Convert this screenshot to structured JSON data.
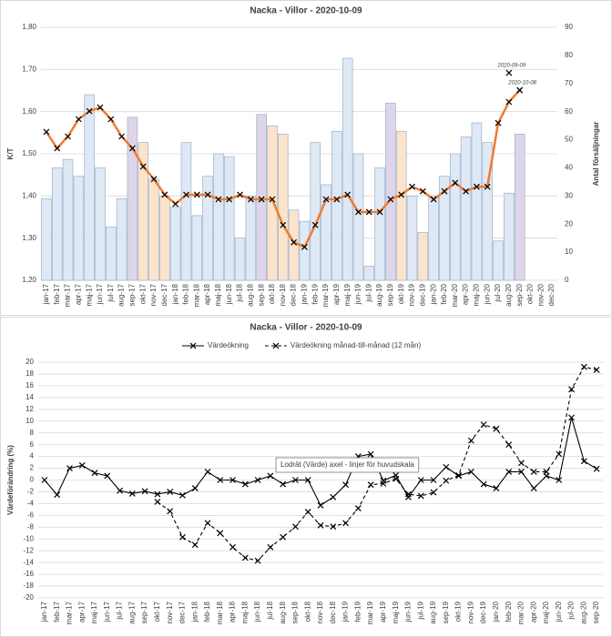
{
  "chart_data": [
    {
      "type": "combo",
      "title": "Nacka - Villor - 2020-10-09",
      "ylabel": "K/T",
      "y2label": "Antal försäljningar",
      "categories": [
        "jan-17",
        "feb-17",
        "mar-17",
        "apr-17",
        "maj-17",
        "jun-17",
        "jul-17",
        "aug-17",
        "sep-17",
        "okt-17",
        "nov-17",
        "dec-17",
        "jan-18",
        "feb-18",
        "mar-18",
        "apr-18",
        "maj-18",
        "jun-18",
        "jul-18",
        "aug-18",
        "sep-18",
        "okt-18",
        "nov-18",
        "dec-18",
        "jan-19",
        "feb-19",
        "mar-19",
        "apr-19",
        "maj-19",
        "jun-19",
        "jul-19",
        "aug-19",
        "sep-19",
        "okt-19",
        "nov-19",
        "dec-19",
        "jan-20",
        "feb-20",
        "mar-20",
        "apr-20",
        "maj-20",
        "jun-20",
        "jul-20",
        "aug-20",
        "sep-20",
        "okt-20",
        "nov-20",
        "dec-20"
      ],
      "ylim": [
        1.2,
        1.8
      ],
      "yticks": [
        {
          "value": 1.2,
          "label": "1,20"
        },
        {
          "value": 1.3,
          "label": "1,30"
        },
        {
          "value": 1.4,
          "label": "1,40"
        },
        {
          "value": 1.5,
          "label": "1,50"
        },
        {
          "value": 1.6,
          "label": "1,60"
        },
        {
          "value": 1.7,
          "label": "1,70"
        },
        {
          "value": 1.8,
          "label": "1,80"
        }
      ],
      "y2lim": [
        0,
        90
      ],
      "y2ticks": [
        0,
        10,
        20,
        30,
        40,
        50,
        60,
        70,
        80,
        90
      ],
      "grid": true,
      "series": [
        {
          "type": "bar",
          "axis": "y2",
          "values": [
            29,
            40,
            43,
            37,
            66,
            40,
            19,
            29,
            58,
            49,
            36,
            30,
            26,
            49,
            23,
            37,
            45,
            44,
            15,
            30,
            59,
            55,
            52,
            25,
            21,
            49,
            34,
            53,
            79,
            45,
            5,
            40,
            63,
            53,
            30,
            17,
            30,
            37,
            45,
            51,
            56,
            49,
            14,
            31,
            52,
            null,
            null,
            null
          ],
          "colors": [
            "#dfe8f5",
            "#dfe8f5",
            "#dfe8f5",
            "#dfe8f5",
            "#dfe8f5",
            "#dfe8f5",
            "#dfe8f5",
            "#dfe8f5",
            "#ddd5ea",
            "#fbe3cc",
            "#fbe3cc",
            "#fbe3cc",
            "#dfe8f5",
            "#dfe8f5",
            "#dfe8f5",
            "#dfe8f5",
            "#dfe8f5",
            "#dfe8f5",
            "#dfe8f5",
            "#dfe8f5",
            "#ddd5ea",
            "#fbe3cc",
            "#fbe3cc",
            "#fbe3cc",
            "#dfe8f5",
            "#dfe8f5",
            "#dfe8f5",
            "#dfe8f5",
            "#dfe8f5",
            "#dfe8f5",
            "#dfe8f5",
            "#dfe8f5",
            "#ddd5ea",
            "#fbe3cc",
            "#dfe8f5",
            "#fbe3cc",
            "#dfe8f5",
            "#dfe8f5",
            "#dfe8f5",
            "#dfe8f5",
            "#dfe8f5",
            "#dfe8f5",
            "#dfe8f5",
            "#dfe8f5",
            "#ddd5ea",
            null,
            null,
            null
          ]
        },
        {
          "type": "line",
          "color": "#ed7d31",
          "values": [
            1.552,
            1.513,
            1.541,
            1.582,
            1.601,
            1.61,
            1.582,
            1.541,
            1.513,
            1.47,
            1.44,
            1.403,
            1.381,
            1.403,
            1.403,
            1.403,
            1.392,
            1.392,
            1.403,
            1.392,
            1.392,
            1.392,
            1.331,
            1.29,
            1.279,
            1.331,
            1.392,
            1.392,
            1.403,
            1.362,
            1.362,
            1.362,
            1.392,
            1.403,
            1.422,
            1.411,
            1.392,
            1.411,
            1.431,
            1.411,
            1.422,
            1.422,
            1.573,
            1.623,
            1.651,
            null,
            null,
            null
          ]
        }
      ],
      "annotations": [
        {
          "label": "2020-09-09",
          "x": "aug-20",
          "y": 1.692
        },
        {
          "label": "2020-10-08",
          "x": "sep-20",
          "y": 1.651
        }
      ]
    },
    {
      "type": "line",
      "title": "Nacka - Villor - 2020-10-09",
      "ylabel": "Värdeförändring (%)",
      "tooltip": "Lodrät (Värde) axel - linjer för huvudskala",
      "categories": [
        "jan-17",
        "feb-17",
        "mar-17",
        "apr-17",
        "maj-17",
        "jun-17",
        "jul-17",
        "aug-17",
        "sep-17",
        "okt-17",
        "nov-17",
        "dec-17",
        "jan-18",
        "feb-18",
        "mar-18",
        "apr-18",
        "maj-18",
        "jun-18",
        "jul-18",
        "aug-18",
        "sep-18",
        "okt-18",
        "nov-18",
        "dec-18",
        "jan-19",
        "feb-19",
        "mar-19",
        "apr-19",
        "maj-19",
        "jun-19",
        "jul-19",
        "aug-19",
        "sep-19",
        "okt-19",
        "nov-19",
        "dec-19",
        "jan-20",
        "feb-20",
        "mar-20",
        "apr-20",
        "maj-20",
        "jun-20",
        "jul-20",
        "aug-20",
        "sep-20"
      ],
      "ylim": [
        -20,
        20
      ],
      "yticks": [
        -20,
        -18,
        -16,
        -14,
        -12,
        -10,
        -8,
        -6,
        -4,
        -2,
        0,
        2,
        4,
        6,
        8,
        10,
        12,
        14,
        16,
        18,
        20
      ],
      "grid": true,
      "series": [
        {
          "name": "Värdeökning",
          "color": "#000000",
          "dash": false,
          "values": [
            0,
            -2.5,
            2,
            2.5,
            1.2,
            0.7,
            -1.8,
            -2.3,
            -1.9,
            -2.4,
            -2,
            -2.6,
            -1.4,
            1.4,
            0,
            0,
            -0.7,
            0,
            0.7,
            -0.7,
            0,
            0,
            -4.3,
            -2.9,
            -0.8,
            4,
            4.4,
            -0.1,
            0.8,
            -2.9,
            0,
            0,
            2.2,
            0.7,
            1.4,
            -0.7,
            -1.4,
            1.4,
            1.4,
            -1.4,
            0.7,
            0,
            10.6,
            3.2,
            1.9
          ]
        },
        {
          "name": "Värdeökning månad-till-månad (12 mån)",
          "color": "#000000",
          "dash": true,
          "values": [
            null,
            null,
            null,
            null,
            null,
            null,
            null,
            null,
            null,
            -3.7,
            -5.3,
            -9.7,
            -11,
            -7.3,
            -9,
            -11.4,
            -13.2,
            -13.7,
            -11.4,
            -9.7,
            -7.9,
            -5.4,
            -7.7,
            -7.9,
            -7.3,
            -4.8,
            -0.8,
            -0.6,
            0.2,
            -2.4,
            -2.7,
            -2.1,
            -0.1,
            0.8,
            6.7,
            9.4,
            8.7,
            6,
            2.9,
            1.4,
            1.4,
            4.4,
            15.4,
            19.2,
            18.7
          ]
        }
      ]
    }
  ]
}
